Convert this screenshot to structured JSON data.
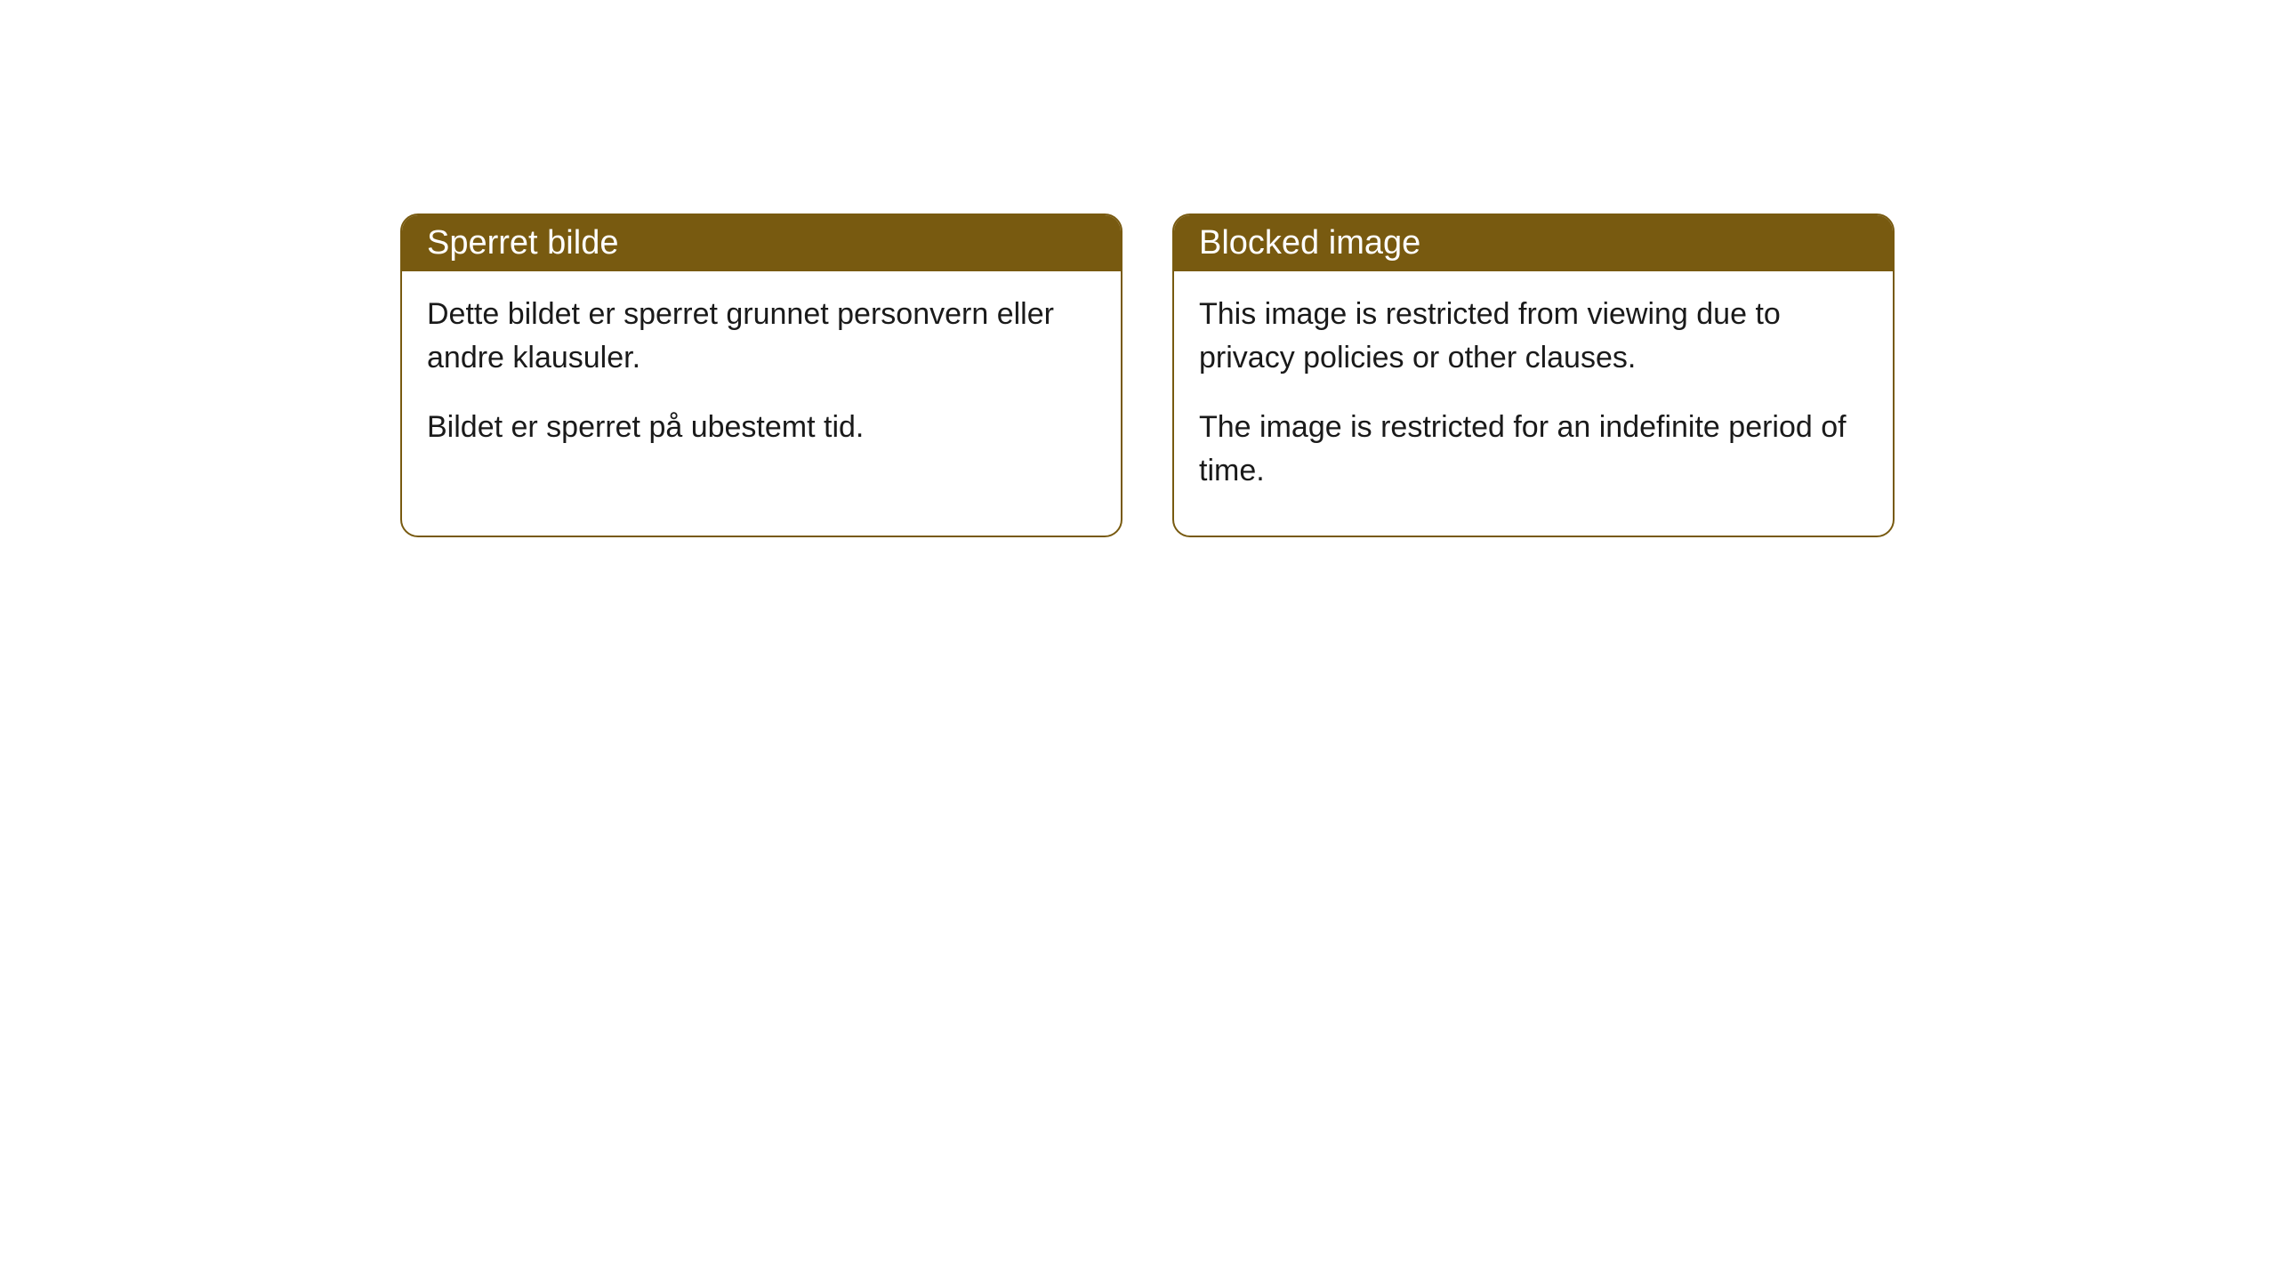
{
  "cards": [
    {
      "title": "Sperret bilde",
      "paragraph1": "Dette bildet er sperret grunnet personvern eller andre klausuler.",
      "paragraph2": "Bildet er sperret på ubestemt tid."
    },
    {
      "title": "Blocked image",
      "paragraph1": "This image is restricted from viewing due to privacy policies or other clauses.",
      "paragraph2": "The image is restricted for an indefinite period of time."
    }
  ],
  "style": {
    "header_bg_color": "#785a10",
    "header_text_color": "#ffffff",
    "border_color": "#785a10",
    "body_text_color": "#1a1a1a",
    "page_bg_color": "#ffffff",
    "border_radius": 20,
    "header_fontsize": 38,
    "body_fontsize": 34
  }
}
